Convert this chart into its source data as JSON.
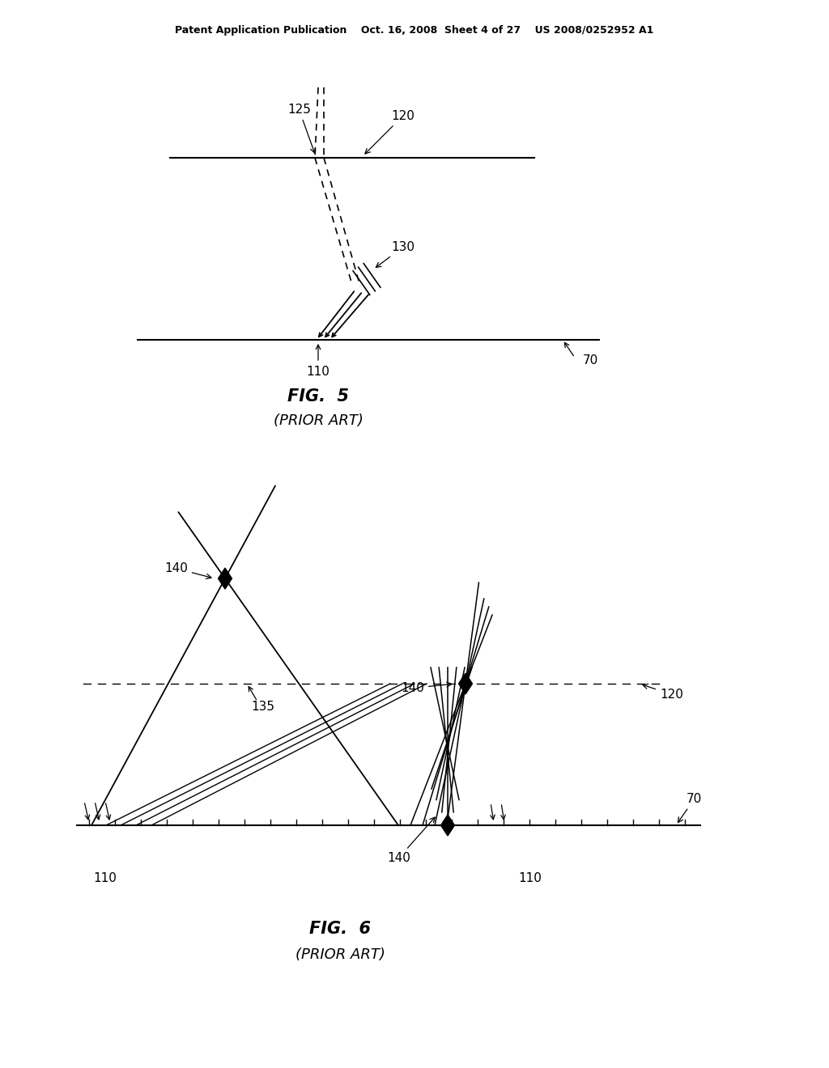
{
  "bg_color": "#ffffff",
  "header": "Patent Application Publication    Oct. 16, 2008  Sheet 4 of 27    US 2008/0252952 A1",
  "fig5_title": "FIG.  5",
  "fig5_sub": "(PRIOR ART)",
  "fig6_title": "FIG.  6",
  "fig6_sub": "(PRIOR ART)"
}
